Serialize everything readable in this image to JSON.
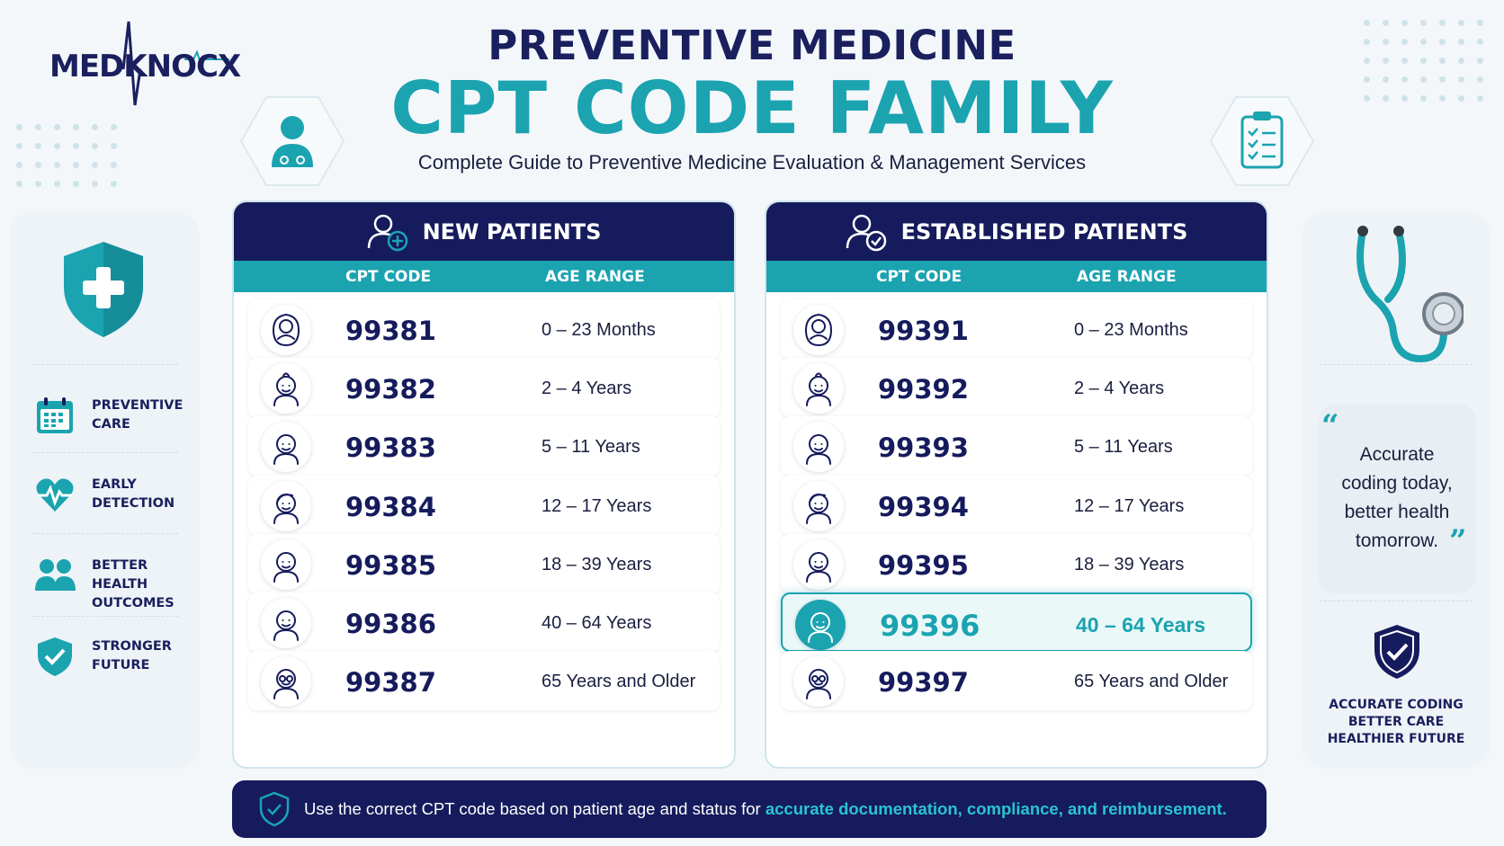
{
  "brand": {
    "logo_text": "MEDKNOCX"
  },
  "header": {
    "title_line1": "PREVENTIVE MEDICINE",
    "title_line2": "CPT CODE FAMILY",
    "subtitle": "Complete Guide to Preventive Medicine Evaluation & Management Services"
  },
  "features": [
    {
      "label_1": "PREVENTIVE",
      "label_2": "CARE",
      "icon": "calendar-icon"
    },
    {
      "label_1": "EARLY",
      "label_2": "DETECTION",
      "icon": "heartbeat-icon"
    },
    {
      "label_1": "BETTER HEALTH",
      "label_2": "OUTCOMES",
      "icon": "people-icon"
    },
    {
      "label_1": "STRONGER",
      "label_2": "FUTURE",
      "icon": "shield-check-icon"
    }
  ],
  "new_patients": {
    "title": "NEW PATIENTS",
    "col_code": "CPT CODE",
    "col_age": "AGE RANGE",
    "rows": [
      {
        "code": "99381",
        "age": "0 – 23 Months",
        "icon": "infant-icon"
      },
      {
        "code": "99382",
        "age": "2 – 4 Years",
        "icon": "toddler-icon"
      },
      {
        "code": "99383",
        "age": "5 – 11 Years",
        "icon": "child-icon"
      },
      {
        "code": "99384",
        "age": "12 – 17 Years",
        "icon": "teen-icon"
      },
      {
        "code": "99385",
        "age": "18 – 39 Years",
        "icon": "young-adult-icon"
      },
      {
        "code": "99386",
        "age": "40 – 64 Years",
        "icon": "adult-icon"
      },
      {
        "code": "99387",
        "age": "65 Years and Older",
        "icon": "senior-icon"
      }
    ]
  },
  "established_patients": {
    "title": "ESTABLISHED PATIENTS",
    "col_code": "CPT CODE",
    "col_age": "AGE RANGE",
    "highlight_index": 5,
    "rows": [
      {
        "code": "99391",
        "age": "0 – 23 Months",
        "icon": "infant-icon"
      },
      {
        "code": "99392",
        "age": "2 – 4 Years",
        "icon": "toddler-icon"
      },
      {
        "code": "99393",
        "age": "5 – 11 Years",
        "icon": "child-icon"
      },
      {
        "code": "99394",
        "age": "12 – 17 Years",
        "icon": "teen-icon"
      },
      {
        "code": "99395",
        "age": "18 – 39 Years",
        "icon": "young-adult-icon"
      },
      {
        "code": "99396",
        "age": "40 – 64 Years",
        "icon": "adult-icon"
      },
      {
        "code": "99397",
        "age": "65 Years and Older",
        "icon": "senior-icon"
      }
    ]
  },
  "quote": {
    "line1": "Accurate",
    "line2": "coding today,",
    "line3": "better health",
    "line4": "tomorrow."
  },
  "motto": {
    "line1": "ACCURATE CODING",
    "line2": "BETTER CARE",
    "line3": "HEALTHIER FUTURE"
  },
  "footer": {
    "text": "Use the correct CPT code based on patient age and status for ",
    "highlight": "accurate documentation, compliance, and reimbursement."
  },
  "colors": {
    "navy": "#151b5c",
    "teal": "#1ba3b0",
    "background": "#f4f7fa"
  }
}
